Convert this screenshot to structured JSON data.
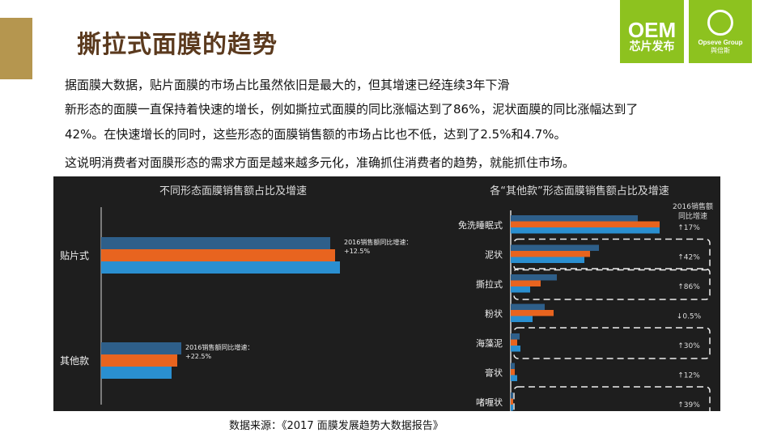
{
  "header": {
    "title": "撕拉式面膜的趋势"
  },
  "logos": {
    "oem": "OEM",
    "oem_sub": "芯片发布",
    "group_en": "Opseve Group",
    "group_cn": "舆倍斯",
    "color": "#8dc21f"
  },
  "paragraphs": [
    "据面膜大数据，贴片面膜的市场占比虽然依旧是最大的，但其增速已经连续3年下滑",
    "新形态的面膜一直保持着快速的增长，例如撕拉式面膜的同比涨幅达到了86%，泥状面膜的同比涨幅达到了",
    "42%。在快速增长的同时，这些形态的面膜销售额的市场占比也不低，达到了2.5%和4.7%。",
    "这说明消费者对面膜形态的需求方面是越来越多元化，准确抓住消费者的趋势，就能抓住市场。"
  ],
  "source": "数据来源：《2017 面膜发展趋势大数据报告》",
  "chart_data": [
    {
      "type": "bar",
      "orientation": "horizontal",
      "title": "不同形态面膜销售额占比及增速",
      "categories": [
        "贴片式",
        "其他款"
      ],
      "series": [
        {
          "values": [
            283,
            99
          ]
        },
        {
          "values": [
            289,
            94
          ]
        },
        {
          "values": [
            295,
            87
          ]
        }
      ],
      "series_colors": [
        "#2e5f8a",
        "#e8641f",
        "#2a8fd0"
      ],
      "annotations": [
        {
          "category": "贴片式",
          "line1": "2016销售额同比增速：",
          "line2": "+12.5%"
        },
        {
          "category": "其他款",
          "line1": "2016销售额同比增速：",
          "line2": "+22.5%"
        }
      ]
    },
    {
      "type": "bar",
      "orientation": "horizontal",
      "title": "各“其他款”形态面膜销售额占比及增速",
      "header_note": [
        "2016销售额",
        "同比增速"
      ],
      "categories": [
        "免洗睡眠式",
        "泥状",
        "撕拉式",
        "粉状",
        "海藻泥",
        "膏状",
        "啫喱状"
      ],
      "series": [
        {
          "values": [
            157,
            109,
            57,
            42,
            11,
            5,
            3
          ]
        },
        {
          "values": [
            184,
            98,
            37,
            53,
            8,
            5,
            3
          ]
        },
        {
          "values": [
            184,
            91,
            24,
            27,
            12,
            8,
            3
          ]
        }
      ],
      "series_colors": [
        "#2e5f8a",
        "#e8641f",
        "#2a8fd0"
      ],
      "growth": [
        "↑17%",
        "↑42%",
        "↑86%",
        "↓0.5%",
        "↑30%",
        "↑12%",
        "↑39%"
      ],
      "highlighted": [
        false,
        true,
        true,
        false,
        true,
        false,
        true
      ]
    }
  ]
}
